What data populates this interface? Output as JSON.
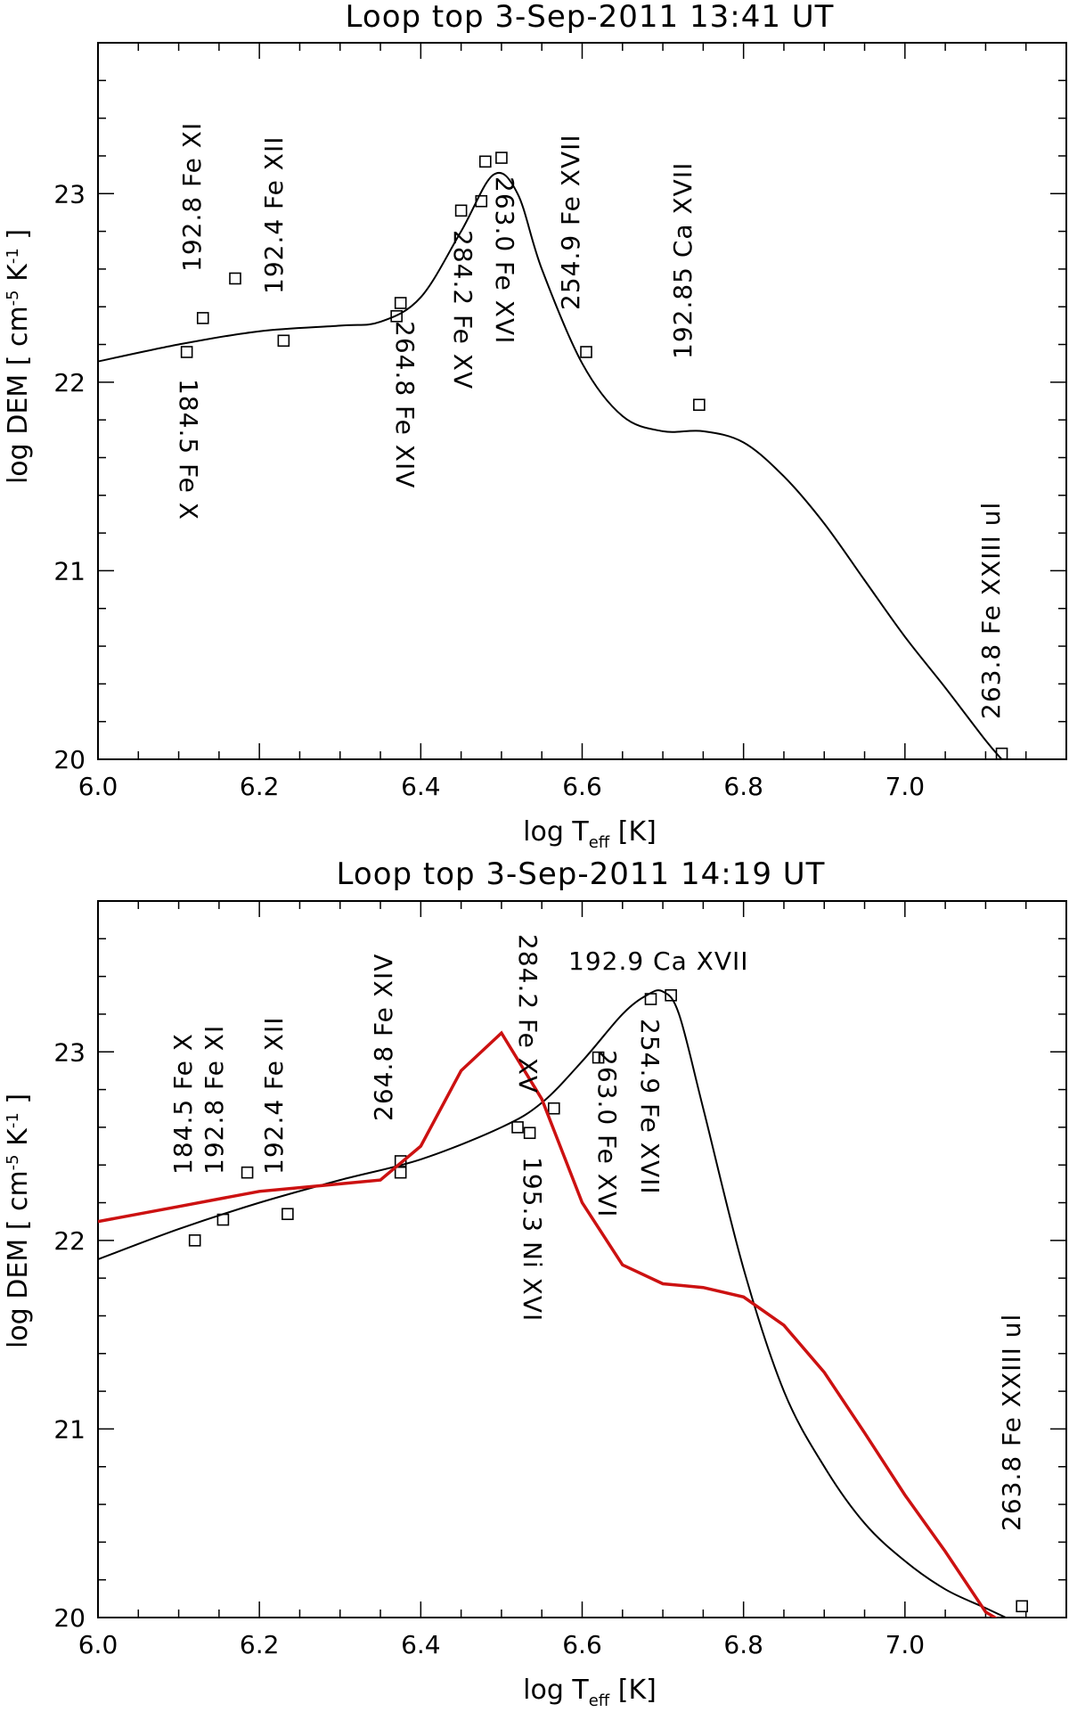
{
  "chart_data": [
    {
      "type": "scatter",
      "title": "Loop top 3-Sep-2011 13:41 UT",
      "xlabel": "log T_eff [K]",
      "ylabel": "log DEM [ cm^-5 K^-1 ]",
      "xlabel_parts": {
        "main": "log T",
        "sub": "eff",
        "unit": " [K]"
      },
      "ylabel_parts": {
        "pre": "log DEM [ cm",
        "sup1": "-5",
        "mid": " K",
        "sup2": "-1",
        "post": " ]"
      },
      "xlim": [
        6.0,
        7.2
      ],
      "ylim": [
        20.0,
        23.8
      ],
      "xticks": [
        "6.0",
        "6.2",
        "6.4",
        "6.6",
        "6.8",
        "7.0"
      ],
      "yticks": [
        "20",
        "21",
        "22",
        "23"
      ],
      "series": [
        {
          "kind": "points",
          "x": [
            6.11,
            6.13,
            6.17,
            6.23,
            6.37,
            6.375,
            6.45,
            6.475,
            6.48,
            6.5,
            6.605,
            6.745,
            7.12
          ],
          "y": [
            22.16,
            22.34,
            22.55,
            22.22,
            22.35,
            22.42,
            22.91,
            22.96,
            23.17,
            23.19,
            22.16,
            21.88,
            20.03
          ]
        },
        {
          "kind": "fit",
          "color": "#000000",
          "x": [
            6.0,
            6.1,
            6.2,
            6.3,
            6.35,
            6.4,
            6.45,
            6.49,
            6.52,
            6.55,
            6.6,
            6.65,
            6.7,
            6.75,
            6.8,
            6.85,
            6.9,
            6.95,
            7.0,
            7.05,
            7.1,
            7.12
          ],
          "y": [
            22.11,
            22.2,
            22.27,
            22.3,
            22.32,
            22.45,
            22.8,
            23.1,
            23.0,
            22.6,
            22.1,
            21.82,
            21.74,
            21.74,
            21.68,
            21.5,
            21.25,
            20.95,
            20.65,
            20.38,
            20.1,
            20.0
          ]
        }
      ],
      "annotations": [
        "192.8 Fe XI",
        "192.4 Fe XII",
        "184.5 Fe X",
        "264.8 Fe XIV",
        "284.2 Fe XV",
        "263.0 Fe XVI",
        "254.9 Fe XVII",
        "192.85 Ca XVII",
        "263.8 Fe XXIII ul"
      ]
    },
    {
      "type": "scatter",
      "title": "Loop top 3-Sep-2011 14:19 UT",
      "xlabel": "log T_eff [K]",
      "ylabel": "log DEM [ cm^-5 K^-1 ]",
      "xlabel_parts": {
        "main": "log T",
        "sub": "eff",
        "unit": " [K]"
      },
      "ylabel_parts": {
        "pre": "log DEM [ cm",
        "sup1": "-5",
        "mid": " K",
        "sup2": "-1",
        "post": " ]"
      },
      "xlim": [
        6.0,
        7.2
      ],
      "ylim": [
        20.0,
        23.8
      ],
      "xticks": [
        "6.0",
        "6.2",
        "6.4",
        "6.6",
        "6.8",
        "7.0"
      ],
      "yticks": [
        "20",
        "21",
        "22",
        "23"
      ],
      "series": [
        {
          "kind": "points",
          "x": [
            6.12,
            6.155,
            6.185,
            6.235,
            6.375,
            6.375,
            6.52,
            6.535,
            6.565,
            6.62,
            6.685,
            6.71,
            7.145
          ],
          "y": [
            22.0,
            22.11,
            22.36,
            22.14,
            22.36,
            22.42,
            22.6,
            22.57,
            22.7,
            22.97,
            23.28,
            23.3,
            20.06
          ]
        },
        {
          "kind": "fit",
          "color": "#000000",
          "x": [
            6.0,
            6.1,
            6.2,
            6.3,
            6.4,
            6.5,
            6.55,
            6.6,
            6.65,
            6.68,
            6.7,
            6.72,
            6.75,
            6.8,
            6.85,
            6.9,
            6.95,
            7.0,
            7.05,
            7.1,
            7.15
          ],
          "y": [
            21.9,
            22.06,
            22.2,
            22.32,
            22.43,
            22.6,
            22.73,
            22.95,
            23.2,
            23.3,
            23.32,
            23.2,
            22.7,
            21.85,
            21.2,
            20.8,
            20.5,
            20.3,
            20.15,
            20.05,
            19.95
          ]
        },
        {
          "kind": "model",
          "color": "#cc1111",
          "x": [
            6.0,
            6.1,
            6.2,
            6.25,
            6.3,
            6.35,
            6.4,
            6.45,
            6.5,
            6.55,
            6.6,
            6.65,
            6.7,
            6.75,
            6.8,
            6.85,
            6.9,
            6.95,
            7.0,
            7.05,
            7.1,
            7.15
          ],
          "y": [
            22.1,
            22.18,
            22.26,
            22.28,
            22.3,
            22.32,
            22.5,
            22.9,
            23.1,
            22.75,
            22.2,
            21.87,
            21.77,
            21.75,
            21.7,
            21.55,
            21.3,
            20.98,
            20.65,
            20.35,
            20.03,
            19.9
          ]
        }
      ],
      "annotations": [
        "184.5 Fe X",
        "192.8 Fe XI",
        "192.4 Fe XII",
        "264.8 Fe XIV",
        "284.2 Fe XV",
        "195.3 Ni XVI",
        "263.0 Fe XVI",
        "254.9 Fe XVII",
        "192.9 Ca XVII",
        "263.8 Fe XXIII ul"
      ]
    }
  ]
}
